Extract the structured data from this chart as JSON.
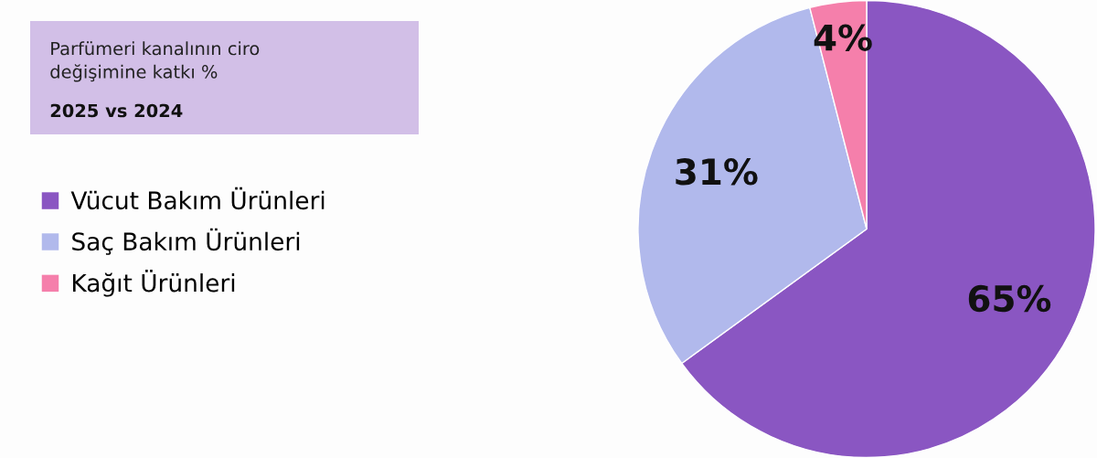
{
  "chart_data": {
    "type": "pie",
    "title": "Parfümeri kanalının ciro\ndeğişimine katkı %",
    "subtitle": "2025 vs 2024",
    "categories": [
      "Vücut Bakım Ürünleri",
      "Saç Bakım Ürünleri",
      "Kağıt Ürünleri"
    ],
    "values": [
      65,
      31,
      4
    ],
    "colors": [
      "#8a56c2",
      "#b1b9ec",
      "#f57fab"
    ],
    "value_labels": [
      "65%",
      "31%",
      "4%"
    ],
    "legend": "left"
  }
}
